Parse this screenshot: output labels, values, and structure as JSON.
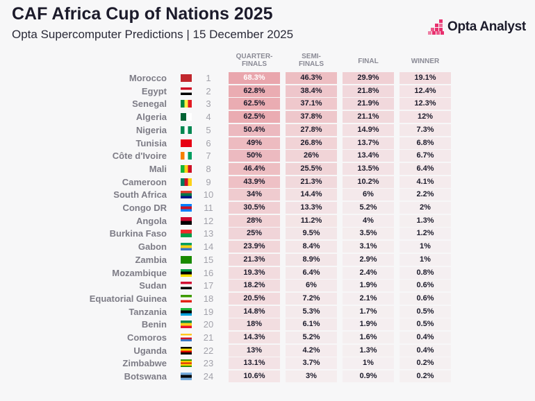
{
  "title": "CAF Africa Cup of Nations 2025",
  "subtitle": "Opta Supercomputer Predictions | 15 December 2025",
  "logo": {
    "text": "Opta Analyst",
    "color": "#e8306e"
  },
  "columns": [
    "QUARTER-\nFINALS",
    "SEMI-\nFINALS",
    "FINAL",
    "WINNER"
  ],
  "chart_data": {
    "type": "table",
    "title": "CAF Africa Cup of Nations 2025",
    "columns": [
      "QUARTER-FINALS",
      "SEMI-FINALS",
      "FINAL",
      "WINNER"
    ],
    "cell_color": "#dc5a66",
    "rows": [
      {
        "rank": "1",
        "country": "Morocco",
        "flag": [
          "#c1272d",
          "#c1272d",
          "#c1272d"
        ],
        "values": [
          "68.3%",
          "46.3%",
          "29.9%",
          "19.1%"
        ]
      },
      {
        "rank": "2",
        "country": "Egypt",
        "flag": [
          "#ce1126",
          "#ffffff",
          "#000000"
        ],
        "values": [
          "62.8%",
          "38.4%",
          "21.8%",
          "12.4%"
        ]
      },
      {
        "rank": "3",
        "country": "Senegal",
        "flag": [
          "#00853f",
          "#fdef42",
          "#e31b23"
        ],
        "vertical": true,
        "values": [
          "62.5%",
          "37.1%",
          "21.9%",
          "12.3%"
        ]
      },
      {
        "rank": "4",
        "country": "Algeria",
        "flag": [
          "#006233",
          "#ffffff"
        ],
        "vertical": true,
        "values": [
          "62.5%",
          "37.8%",
          "21.1%",
          "12%"
        ]
      },
      {
        "rank": "5",
        "country": "Nigeria",
        "flag": [
          "#008751",
          "#ffffff",
          "#008751"
        ],
        "vertical": true,
        "values": [
          "50.4%",
          "27.8%",
          "14.9%",
          "7.3%"
        ]
      },
      {
        "rank": "6",
        "country": "Tunisia",
        "flag": [
          "#e70013",
          "#e70013",
          "#e70013"
        ],
        "values": [
          "49%",
          "26.8%",
          "13.7%",
          "6.8%"
        ]
      },
      {
        "rank": "7",
        "country": "Côte d'Ivoire",
        "flag": [
          "#f77f00",
          "#ffffff",
          "#009e60"
        ],
        "vertical": true,
        "values": [
          "50%",
          "26%",
          "13.4%",
          "6.7%"
        ]
      },
      {
        "rank": "8",
        "country": "Mali",
        "flag": [
          "#14b53a",
          "#fcd116",
          "#ce1126"
        ],
        "vertical": true,
        "values": [
          "46.4%",
          "25.5%",
          "13.5%",
          "6.4%"
        ]
      },
      {
        "rank": "9",
        "country": "Cameroon",
        "flag": [
          "#007a5e",
          "#ce1126",
          "#fcd116"
        ],
        "vertical": true,
        "values": [
          "43.9%",
          "21.3%",
          "10.2%",
          "4.1%"
        ]
      },
      {
        "rank": "10",
        "country": "South Africa",
        "flag": [
          "#e03c31",
          "#007749",
          "#001489"
        ],
        "values": [
          "34%",
          "14.4%",
          "6%",
          "2.2%"
        ]
      },
      {
        "rank": "11",
        "country": "Congo DR",
        "flag": [
          "#007fff",
          "#ce1021",
          "#007fff"
        ],
        "values": [
          "30.5%",
          "13.3%",
          "5.2%",
          "2%"
        ]
      },
      {
        "rank": "12",
        "country": "Angola",
        "flag": [
          "#cc092f",
          "#000000"
        ],
        "values": [
          "28%",
          "11.2%",
          "4%",
          "1.3%"
        ]
      },
      {
        "rank": "13",
        "country": "Burkina Faso",
        "flag": [
          "#ef2b2d",
          "#009e49"
        ],
        "values": [
          "25%",
          "9.5%",
          "3.5%",
          "1.2%"
        ]
      },
      {
        "rank": "14",
        "country": "Gabon",
        "flag": [
          "#009e60",
          "#fcd116",
          "#3a75c4"
        ],
        "values": [
          "23.9%",
          "8.4%",
          "3.1%",
          "1%"
        ]
      },
      {
        "rank": "15",
        "country": "Zambia",
        "flag": [
          "#198a00",
          "#198a00",
          "#198a00"
        ],
        "values": [
          "21.3%",
          "8.9%",
          "2.9%",
          "1%"
        ]
      },
      {
        "rank": "16",
        "country": "Mozambique",
        "flag": [
          "#009a44",
          "#000000",
          "#fce100"
        ],
        "values": [
          "19.3%",
          "6.4%",
          "2.4%",
          "0.8%"
        ]
      },
      {
        "rank": "17",
        "country": "Sudan",
        "flag": [
          "#d21034",
          "#ffffff",
          "#000000"
        ],
        "values": [
          "18.2%",
          "6%",
          "1.9%",
          "0.6%"
        ]
      },
      {
        "rank": "18",
        "country": "Equatorial Guinea",
        "flag": [
          "#3e9a00",
          "#ffffff",
          "#e32118"
        ],
        "values": [
          "20.5%",
          "7.2%",
          "2.1%",
          "0.6%"
        ]
      },
      {
        "rank": "19",
        "country": "Tanzania",
        "flag": [
          "#1eb53a",
          "#000000",
          "#00a3dd"
        ],
        "values": [
          "14.8%",
          "5.3%",
          "1.7%",
          "0.5%"
        ]
      },
      {
        "rank": "20",
        "country": "Benin",
        "flag": [
          "#008751",
          "#fcd116",
          "#e8112d"
        ],
        "values": [
          "18%",
          "6.1%",
          "1.9%",
          "0.5%"
        ]
      },
      {
        "rank": "21",
        "country": "Comoros",
        "flag": [
          "#ffc61e",
          "#ffffff",
          "#ce1126",
          "#3a75c4"
        ],
        "values": [
          "14.3%",
          "5.2%",
          "1.6%",
          "0.4%"
        ]
      },
      {
        "rank": "22",
        "country": "Uganda",
        "flag": [
          "#000000",
          "#fcdc04",
          "#d90000",
          "#000000"
        ],
        "values": [
          "13%",
          "4.2%",
          "1.3%",
          "0.4%"
        ]
      },
      {
        "rank": "23",
        "country": "Zimbabwe",
        "flag": [
          "#319208",
          "#ffd200",
          "#de2010",
          "#ffd200",
          "#319208"
        ],
        "values": [
          "13.1%",
          "3.7%",
          "1%",
          "0.2%"
        ]
      },
      {
        "rank": "24",
        "country": "Botswana",
        "flag": [
          "#75aadb",
          "#000000",
          "#75aadb"
        ],
        "values": [
          "10.6%",
          "3%",
          "0.9%",
          "0.2%"
        ]
      }
    ]
  }
}
